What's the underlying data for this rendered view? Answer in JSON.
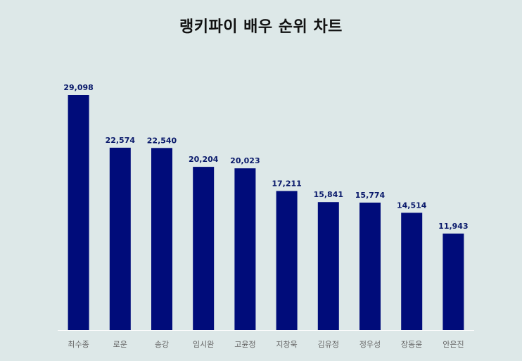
{
  "chart_data": {
    "type": "bar",
    "title": "랭키파이 배우 순위 차트",
    "categories": [
      "최수종",
      "로운",
      "송강",
      "임시완",
      "고윤정",
      "지창욱",
      "김유정",
      "정우성",
      "장동윤",
      "안은진"
    ],
    "values": [
      29098,
      22574,
      22540,
      20204,
      20023,
      17211,
      15841,
      15774,
      14514,
      11943
    ],
    "value_labels": [
      "29,098",
      "22,574",
      "22,540",
      "20,204",
      "20,023",
      "17,211",
      "15,841",
      "15,774",
      "14,514",
      "11,943"
    ],
    "xlabel": "",
    "ylabel": "",
    "ylim": [
      0,
      29098
    ],
    "grid": false,
    "legend": "none",
    "bar_color": "#000c7a",
    "label_color": "#0a1a6b",
    "tick_color": "#666666",
    "axis_color": "#ffffff",
    "background": "#dde8e8"
  }
}
